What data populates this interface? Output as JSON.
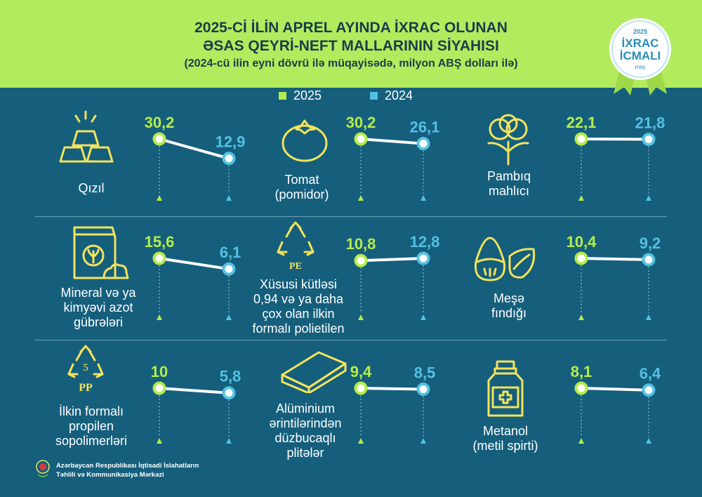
{
  "header": {
    "title_line1": "2025-Cİ İLİN APREL AYINDA İXRAC OLUNAN",
    "title_line2": "ƏSAS QEYRİ-NEFT MALLARININ SİYAHISI",
    "subtitle": "(2024-cü ilin eyni dövrü ilə müqayisədə, milyon ABŞ dolları ilə)"
  },
  "badge": {
    "year": "2025",
    "line1": "İXRAC",
    "line2": "İCMALI",
    "month": "may"
  },
  "legend": {
    "label_2025": "2025",
    "label_2024": "2024"
  },
  "colors": {
    "green": "#b5ec4a",
    "blue": "#53c1e2",
    "bg": "#155f7c",
    "header": "#b2ec5e"
  },
  "chart_data": {
    "type": "line",
    "title": "2025-Cİ İLİN APREL AYINDA İXRAC OLUNAN ƏSAS QEYRİ-NEFT MALLARININ SİYAHISI",
    "series_names": [
      "2025",
      "2024"
    ],
    "items": [
      {
        "name": "Qızıl",
        "icon": "gold-bars-icon",
        "v2025": 30.2,
        "v2024": 12.9,
        "l2025": "30,2",
        "l2024": "12,9"
      },
      {
        "name": "Tomat (pomidor)",
        "icon": "tomato-icon",
        "v2025": 30.2,
        "v2024": 26.1,
        "l2025": "30,2",
        "l2024": "26,1"
      },
      {
        "name": "Pambıq mahlıcı",
        "icon": "cotton-icon",
        "v2025": 22.1,
        "v2024": 21.8,
        "l2025": "22,1",
        "l2024": "21,8"
      },
      {
        "name": "Mineral və ya kimyəvi azot gübrələri",
        "icon": "fertilizer-bag-icon",
        "v2025": 15.6,
        "v2024": 6.1,
        "l2025": "15,6",
        "l2024": "6,1"
      },
      {
        "name": "Xüsusi kütləsi 0,94 və ya daha çox olan ilkin formalı polietilen",
        "icon": "pe-recycle-icon",
        "v2025": 10.8,
        "v2024": 12.8,
        "l2025": "10,8",
        "l2024": "12,8"
      },
      {
        "name": "Meşə fındığı",
        "icon": "hazelnut-icon",
        "v2025": 10.4,
        "v2024": 9.2,
        "l2025": "10,4",
        "l2024": "9,2"
      },
      {
        "name": "İlkin formalı propilen sopolimerləri",
        "icon": "pp-recycle-icon",
        "v2025": 10,
        "v2024": 5.8,
        "l2025": "10",
        "l2024": "5,8"
      },
      {
        "name": "Alüminium ərintilərindən düzbucaqlı plitələr",
        "icon": "aluminium-plate-icon",
        "v2025": 9.4,
        "v2024": 8.5,
        "l2025": "9,4",
        "l2024": "8,5"
      },
      {
        "name": "Metanol (metil spirti)",
        "icon": "methanol-bottle-icon",
        "v2025": 8.1,
        "v2024": 6.4,
        "l2025": "8,1",
        "l2024": "6,4"
      }
    ]
  },
  "labels": {
    "l0": [
      "Qızıl"
    ],
    "l1": [
      "Tomat",
      "(pomidor)"
    ],
    "l2": [
      "Pambıq",
      "mahlıcı"
    ],
    "l3": [
      "Mineral və ya",
      "kimyəvi azot",
      "gübrələri"
    ],
    "l4": [
      "Xüsusi kütləsi",
      "0,94 və ya daha",
      "çox olan ilkin",
      "formalı polietilen"
    ],
    "l5": [
      "Meşə",
      "fındığı"
    ],
    "l6": [
      "İlkin formalı",
      "propilen",
      "sopolimerləri"
    ],
    "l7": [
      "Alüminium",
      "ərintilərindən",
      "düzbucaqlı",
      "plitələr"
    ],
    "l8": [
      "Metanol",
      "(metil spirti)"
    ]
  },
  "icon_text": {
    "pe": "PE",
    "pp": "PP",
    "pp_num": "5"
  },
  "footer": {
    "line1": "Azərbaycan Respublikası İqtisadi İslahatların",
    "line2": "Təhlili və Kommunikasiya Mərkəzi"
  }
}
